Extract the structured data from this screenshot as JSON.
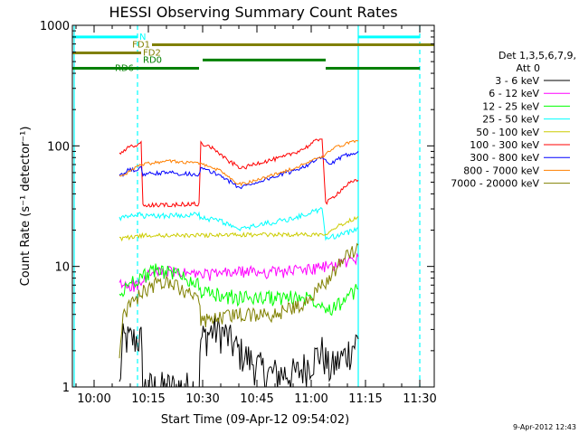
{
  "chart_data": {
    "type": "line",
    "title": "HESSI Observing Summary Count Rates",
    "xlabel": "Start Time (09-Apr-12 09:54:02)",
    "ylabel": "Count Rate (s⁻¹ detector⁻¹)",
    "yscale": "log",
    "ylim": [
      1,
      1000
    ],
    "xlim": [
      "09:54",
      "11:34"
    ],
    "yticks": [
      {
        "v": 1,
        "label": "1"
      },
      {
        "v": 10,
        "label": "10"
      },
      {
        "v": 100,
        "label": "100"
      },
      {
        "v": 1000,
        "label": "1000"
      }
    ],
    "xticks": [
      {
        "t": "10:00",
        "label": "10:00"
      },
      {
        "t": "10:15",
        "label": "10:15"
      },
      {
        "t": "10:30",
        "label": "10:30"
      },
      {
        "t": "10:45",
        "label": "10:45"
      },
      {
        "t": "11:00",
        "label": "11:00"
      },
      {
        "t": "11:15",
        "label": "11:15"
      },
      {
        "t": "11:30",
        "label": "11:30"
      }
    ],
    "legend": {
      "placement": "right",
      "header1": "Det 1,3,5,6,7,9,",
      "header2": "Att 0"
    },
    "series": [
      {
        "name": "3 - 6 keV",
        "color": "#000000",
        "noise": 0.35,
        "points": [
          [
            "10:07",
            1.0
          ],
          [
            "10:08",
            2.5
          ],
          [
            "10:13",
            2.5
          ],
          [
            "10:13.5",
            1.0
          ],
          [
            "10:29",
            1.0
          ],
          [
            "10:29.5",
            2.5
          ],
          [
            "10:33",
            3.0
          ],
          [
            "10:36",
            2.8
          ],
          [
            "10:40",
            2.0
          ],
          [
            "10:44",
            1.6
          ],
          [
            "10:48",
            1.3
          ],
          [
            "10:52",
            1.3
          ],
          [
            "10:56",
            1.3
          ],
          [
            "11:03",
            2.0
          ],
          [
            "11:05",
            1.4
          ],
          [
            "11:09",
            1.8
          ],
          [
            "11:13",
            2.5
          ]
        ]
      },
      {
        "name": "6 - 12 keV",
        "color": "#ff00ff",
        "noise": 0.12,
        "points": [
          [
            "10:07",
            7.0
          ],
          [
            "10:13",
            7.0
          ],
          [
            "10:15",
            8.5
          ],
          [
            "10:20",
            9.0
          ],
          [
            "10:30",
            8.5
          ],
          [
            "10:40",
            9.0
          ],
          [
            "10:50",
            9.0
          ],
          [
            "11:00",
            9.5
          ],
          [
            "11:05",
            10.0
          ],
          [
            "11:10",
            11.0
          ],
          [
            "11:13",
            12.0
          ]
        ]
      },
      {
        "name": "12 - 25 keV",
        "color": "#00ff00",
        "noise": 0.15,
        "points": [
          [
            "10:07",
            5.5
          ],
          [
            "10:10",
            7.5
          ],
          [
            "10:18",
            9.5
          ],
          [
            "10:24",
            8.5
          ],
          [
            "10:29",
            7.0
          ],
          [
            "10:30",
            6.0
          ],
          [
            "10:40",
            5.5
          ],
          [
            "10:50",
            5.5
          ],
          [
            "11:00",
            5.5
          ],
          [
            "11:03",
            5.0
          ],
          [
            "11:05",
            4.5
          ],
          [
            "11:08",
            5.0
          ],
          [
            "11:10",
            5.5
          ],
          [
            "11:13",
            6.5
          ]
        ]
      },
      {
        "name": "25 - 50 keV",
        "color": "#00ffff",
        "noise": 0.05,
        "points": [
          [
            "10:07",
            25
          ],
          [
            "10:13",
            27
          ],
          [
            "10:13.5",
            26
          ],
          [
            "10:29",
            27
          ],
          [
            "10:29.5",
            25
          ],
          [
            "10:35",
            24
          ],
          [
            "10:40",
            20
          ],
          [
            "10:45",
            22
          ],
          [
            "10:55",
            25
          ],
          [
            "11:00",
            28
          ],
          [
            "11:03",
            30
          ],
          [
            "11:04",
            17
          ],
          [
            "11:07",
            18
          ],
          [
            "11:10",
            19
          ],
          [
            "11:13",
            21
          ]
        ]
      },
      {
        "name": "50 - 100 keV",
        "color": "#cccc00",
        "noise": 0.04,
        "points": [
          [
            "10:07",
            17
          ],
          [
            "10:13",
            18
          ],
          [
            "11:04",
            18.5
          ],
          [
            "11:05",
            20
          ],
          [
            "11:08",
            22
          ],
          [
            "11:13",
            26
          ]
        ]
      },
      {
        "name": "100 - 300 keV",
        "color": "#ff0000",
        "noise": 0.04,
        "points": [
          [
            "10:07",
            85
          ],
          [
            "10:09",
            95
          ],
          [
            "10:13",
            105
          ],
          [
            "10:13.5",
            32
          ],
          [
            "10:29",
            33
          ],
          [
            "10:29.5",
            105
          ],
          [
            "10:33",
            95
          ],
          [
            "10:37",
            75
          ],
          [
            "10:41",
            65
          ],
          [
            "10:45",
            72
          ],
          [
            "10:52",
            80
          ],
          [
            "10:58",
            95
          ],
          [
            "11:03",
            118
          ],
          [
            "11:04",
            33
          ],
          [
            "11:07",
            40
          ],
          [
            "11:10",
            48
          ],
          [
            "11:13",
            52
          ]
        ]
      },
      {
        "name": "300 - 800 keV",
        "color": "#0000ff",
        "noise": 0.04,
        "points": [
          [
            "10:07",
            55
          ],
          [
            "10:09",
            62
          ],
          [
            "10:13",
            65
          ],
          [
            "10:13.5",
            58
          ],
          [
            "10:20",
            60
          ],
          [
            "10:29",
            58
          ],
          [
            "10:29.5",
            65
          ],
          [
            "10:35",
            57
          ],
          [
            "10:40",
            45
          ],
          [
            "10:45",
            50
          ],
          [
            "10:55",
            62
          ],
          [
            "11:00",
            72
          ],
          [
            "11:03",
            80
          ],
          [
            "11:05",
            70
          ],
          [
            "11:10",
            85
          ],
          [
            "11:13",
            90
          ]
        ]
      },
      {
        "name": "800 - 7000 keV",
        "color": "#ff8000",
        "noise": 0.03,
        "points": [
          [
            "10:07",
            55
          ],
          [
            "10:13",
            70
          ],
          [
            "10:20",
            75
          ],
          [
            "10:29",
            72
          ],
          [
            "10:35",
            62
          ],
          [
            "10:40",
            48
          ],
          [
            "10:45",
            52
          ],
          [
            "10:55",
            65
          ],
          [
            "11:00",
            75
          ],
          [
            "11:03",
            80
          ],
          [
            "11:06",
            95
          ],
          [
            "11:10",
            105
          ],
          [
            "11:13",
            110
          ]
        ]
      },
      {
        "name": "7000 - 20000 keV",
        "color": "#808000",
        "noise": 0.14,
        "points": [
          [
            "10:07",
            2.0
          ],
          [
            "10:08",
            4.0
          ],
          [
            "10:13",
            6.0
          ],
          [
            "10:18",
            7.5
          ],
          [
            "10:22",
            7.0
          ],
          [
            "10:26",
            6.0
          ],
          [
            "10:29",
            5.0
          ],
          [
            "10:29.5",
            3.5
          ],
          [
            "10:40",
            4.0
          ],
          [
            "10:50",
            4.0
          ],
          [
            "10:58",
            5.0
          ],
          [
            "11:02",
            6.5
          ],
          [
            "11:05",
            8.0
          ],
          [
            "11:08",
            11.0
          ],
          [
            "11:11",
            13.0
          ],
          [
            "11:13",
            15.0
          ]
        ]
      }
    ],
    "flag_bars": [
      {
        "label": "N",
        "color": "#00ffff",
        "level": 800,
        "segments": [
          [
            "09:54",
            "10:12"
          ],
          [
            "11:13",
            "11:30"
          ]
        ]
      },
      {
        "label": "FD1",
        "color": "#808000",
        "level": 690,
        "segments": [
          [
            "10:16",
            "11:34"
          ]
        ]
      },
      {
        "label": "FD2",
        "color": "#808000",
        "level": 590,
        "segments": [
          [
            "09:54",
            "10:13"
          ]
        ]
      },
      {
        "label": "RD0",
        "color": "#008000",
        "level": 515,
        "segments": [
          [
            "10:30",
            "11:04"
          ]
        ]
      },
      {
        "label": "RD6",
        "color": "#008000",
        "level": 440,
        "segments": [
          [
            "09:54",
            "10:29"
          ],
          [
            "11:04",
            "11:30"
          ]
        ]
      }
    ],
    "vertical_markers": [
      {
        "t": "09:54.5",
        "color": "#00ffff",
        "style": "solid"
      },
      {
        "t": "10:12",
        "color": "#00ffff",
        "style": "dashed"
      },
      {
        "t": "11:13",
        "color": "#00ffff",
        "style": "solid"
      },
      {
        "t": "11:30",
        "color": "#00ffff",
        "style": "dashed"
      }
    ]
  },
  "footer": {
    "timestamp": "9-Apr-2012 12:43"
  }
}
